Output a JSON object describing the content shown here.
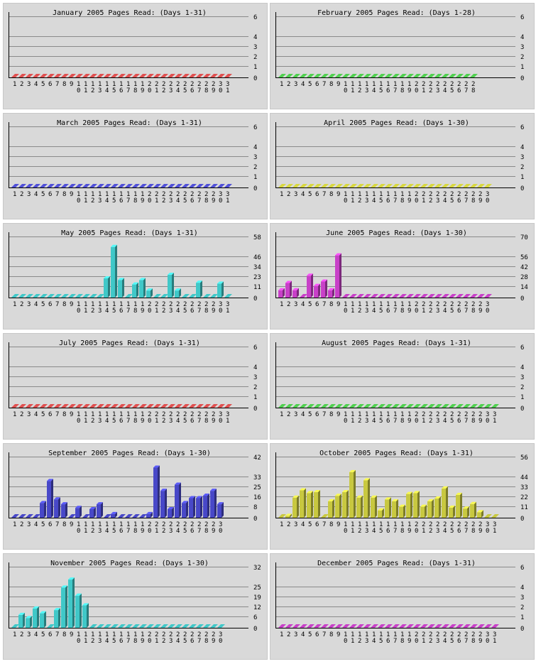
{
  "chart_data": [
    {
      "type": "bar",
      "title": "January 2005 Pages Read: (Days 1-31)",
      "days": 31,
      "color": "#e05050",
      "yticks": [
        "6",
        "4",
        "3",
        "2",
        "1",
        "0"
      ],
      "ymax": 6,
      "values": [
        0,
        0,
        0,
        0,
        0,
        0,
        0,
        0,
        0,
        0,
        0,
        0,
        0,
        0,
        0,
        0,
        0,
        0,
        0,
        0,
        0,
        0,
        0,
        0,
        0,
        0,
        0,
        0,
        0,
        0,
        0
      ]
    },
    {
      "type": "bar",
      "title": "February 2005 Pages Read: (Days 1-28)",
      "days": 28,
      "color": "#50d050",
      "yticks": [
        "6",
        "4",
        "3",
        "2",
        "1",
        "0"
      ],
      "ymax": 6,
      "values": [
        0,
        0,
        0,
        0,
        0,
        0,
        0,
        0,
        0,
        0,
        0,
        0,
        0,
        0,
        0,
        0,
        0,
        0,
        0,
        0,
        0,
        0,
        0,
        0,
        0,
        0,
        0,
        0
      ]
    },
    {
      "type": "bar",
      "title": "March 2005 Pages Read: (Days 1-31)",
      "days": 31,
      "color": "#5050d8",
      "yticks": [
        "6",
        "4",
        "3",
        "2",
        "1",
        "0"
      ],
      "ymax": 6,
      "values": [
        0,
        0,
        0,
        0,
        0,
        0,
        0,
        0,
        0,
        0,
        0,
        0,
        0,
        0,
        0,
        0,
        0,
        0,
        0,
        0,
        0,
        0,
        0,
        0,
        0,
        0,
        0,
        0,
        0,
        0,
        0
      ]
    },
    {
      "type": "bar",
      "title": "April 2005 Pages Read: (Days 1-30)",
      "days": 30,
      "color": "#d8d840",
      "yticks": [
        "6",
        "4",
        "3",
        "2",
        "1",
        "0"
      ],
      "ymax": 6,
      "values": [
        0,
        0,
        0,
        0,
        0,
        0,
        0,
        0,
        0,
        0,
        0,
        0,
        0,
        0,
        0,
        0,
        0,
        0,
        0,
        0,
        0,
        0,
        0,
        0,
        0,
        0,
        0,
        0,
        0,
        0
      ]
    },
    {
      "type": "bar",
      "title": "May 2005 Pages Read: (Days 1-31)",
      "days": 31,
      "color": "#40c8c8",
      "yticks": [
        "58",
        "46",
        "34",
        "23",
        "11",
        "0"
      ],
      "ymax": 70,
      "values": [
        0,
        0,
        0,
        0,
        0,
        0,
        0,
        0,
        0,
        0,
        0,
        0,
        0,
        22,
        58,
        20,
        0,
        15,
        20,
        8,
        0,
        0,
        26,
        8,
        0,
        0,
        17,
        0,
        0,
        16,
        0
      ]
    },
    {
      "type": "bar",
      "title": "June 2005 Pages Read: (Days 1-30)",
      "days": 30,
      "color": "#c840c8",
      "yticks": [
        "70",
        "56",
        "42",
        "28",
        "14",
        "0"
      ],
      "ymax": 84,
      "values": [
        10,
        20,
        10,
        0,
        30,
        16,
        22,
        10,
        58,
        0,
        0,
        0,
        0,
        0,
        0,
        0,
        0,
        0,
        0,
        0,
        0,
        0,
        0,
        0,
        0,
        0,
        0,
        0,
        0,
        0
      ]
    },
    {
      "type": "bar",
      "title": "July 2005 Pages Read: (Days 1-31)",
      "days": 31,
      "color": "#e05050",
      "yticks": [
        "6",
        "4",
        "3",
        "2",
        "1",
        "0"
      ],
      "ymax": 6,
      "values": [
        0,
        0,
        0,
        0,
        0,
        0,
        0,
        0,
        0,
        0,
        0,
        0,
        0,
        0,
        0,
        0,
        0,
        0,
        0,
        0,
        0,
        0,
        0,
        0,
        0,
        0,
        0,
        0,
        0,
        0,
        0
      ]
    },
    {
      "type": "bar",
      "title": "August 2005 Pages Read: (Days 1-31)",
      "days": 31,
      "color": "#50d050",
      "yticks": [
        "6",
        "4",
        "3",
        "2",
        "1",
        "0"
      ],
      "ymax": 6,
      "values": [
        0,
        0,
        0,
        0,
        0,
        0,
        0,
        0,
        0,
        0,
        0,
        0,
        0,
        0,
        0,
        0,
        0,
        0,
        0,
        0,
        0,
        0,
        0,
        0,
        0,
        0,
        0,
        0,
        0,
        0,
        0
      ]
    },
    {
      "type": "bar",
      "title": "September 2005 Pages Read: (Days 1-30)",
      "days": 30,
      "color": "#4848c8",
      "yticks": [
        "42",
        "33",
        "25",
        "16",
        "8",
        "0"
      ],
      "ymax": 50,
      "values": [
        0,
        0,
        0,
        0,
        12,
        30,
        15,
        11,
        0,
        8,
        0,
        7,
        11,
        0,
        3,
        0,
        0,
        0,
        0,
        3,
        41,
        22,
        7,
        27,
        12,
        16,
        16,
        18,
        22,
        11
      ]
    },
    {
      "type": "bar",
      "title": "October 2005 Pages Read: (Days 1-31)",
      "days": 31,
      "color": "#c8c840",
      "yticks": [
        "56",
        "44",
        "33",
        "22",
        "11",
        "0"
      ],
      "ymax": 67,
      "values": [
        0,
        2,
        22,
        30,
        27,
        28,
        0,
        18,
        24,
        28,
        50,
        22,
        41,
        22,
        8,
        20,
        18,
        12,
        26,
        27,
        12,
        18,
        21,
        32,
        11,
        25,
        10,
        15,
        6,
        0,
        0
      ]
    },
    {
      "type": "bar",
      "title": "November 2005 Pages Read: (Days 1-30)",
      "days": 30,
      "color": "#40c8c8",
      "yticks": [
        "32",
        "25",
        "19",
        "12",
        "6",
        "0"
      ],
      "ymax": 38,
      "values": [
        0,
        8,
        6,
        12,
        9,
        0,
        11,
        25,
        30,
        20,
        14,
        0,
        0,
        0,
        0,
        0,
        0,
        0,
        0,
        0,
        0,
        0,
        0,
        0,
        0,
        0,
        0,
        0,
        0,
        0
      ]
    },
    {
      "type": "bar",
      "title": "December 2005 Pages Read: (Days 1-31)",
      "days": 31,
      "color": "#c840c8",
      "yticks": [
        "6",
        "4",
        "3",
        "2",
        "1",
        "0"
      ],
      "ymax": 6,
      "values": [
        0,
        0,
        0,
        0,
        0,
        0,
        0,
        0,
        0,
        0,
        0,
        0,
        0,
        0,
        0,
        0,
        0,
        0,
        0,
        0,
        0,
        0,
        0,
        0,
        0,
        0,
        0,
        0,
        0,
        0,
        0
      ]
    }
  ]
}
